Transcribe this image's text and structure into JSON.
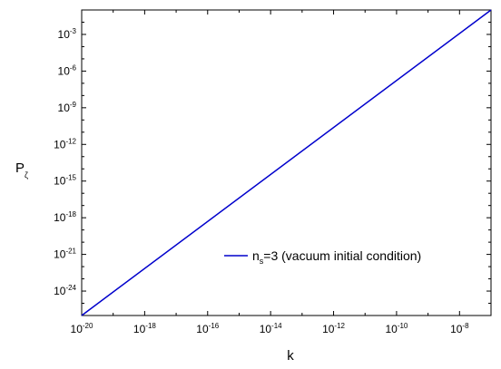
{
  "chart_data": {
    "type": "line",
    "xlabel": "k",
    "ylabel": "P",
    "ylabel_subscript": "ζ",
    "x_scale": "log",
    "y_scale": "log",
    "xlim": [
      1e-20,
      1e-07
    ],
    "ylim": [
      1e-26,
      0.1
    ],
    "x_ticks": [
      {
        "base": "10",
        "exp": "-20",
        "value": 1e-20
      },
      {
        "base": "10",
        "exp": "-18",
        "value": 1e-18
      },
      {
        "base": "10",
        "exp": "-16",
        "value": 1e-16
      },
      {
        "base": "10",
        "exp": "-14",
        "value": 1e-14
      },
      {
        "base": "10",
        "exp": "-12",
        "value": 1e-12
      },
      {
        "base": "10",
        "exp": "-10",
        "value": 1e-10
      },
      {
        "base": "10",
        "exp": "-8",
        "value": 1e-08
      }
    ],
    "y_ticks": [
      {
        "base": "10",
        "exp": "-24",
        "value": 1e-24
      },
      {
        "base": "10",
        "exp": "-21",
        "value": 1e-21
      },
      {
        "base": "10",
        "exp": "-18",
        "value": 1e-18
      },
      {
        "base": "10",
        "exp": "-15",
        "value": 1e-15
      },
      {
        "base": "10",
        "exp": "-12",
        "value": 1e-12
      },
      {
        "base": "10",
        "exp": "-9",
        "value": 1e-09
      },
      {
        "base": "10",
        "exp": "-6",
        "value": 1e-06
      },
      {
        "base": "10",
        "exp": "-3",
        "value": 0.001
      }
    ],
    "series": [
      {
        "legend_main": "n",
        "legend_sub": "s",
        "legend_rest": "=3  (vacuum initial condition)",
        "color": "#0000cc",
        "x": [
          1e-20,
          1e-07
        ],
        "y": [
          1e-26,
          0.1
        ]
      }
    ],
    "legend_position": "center-right",
    "grid": false
  }
}
